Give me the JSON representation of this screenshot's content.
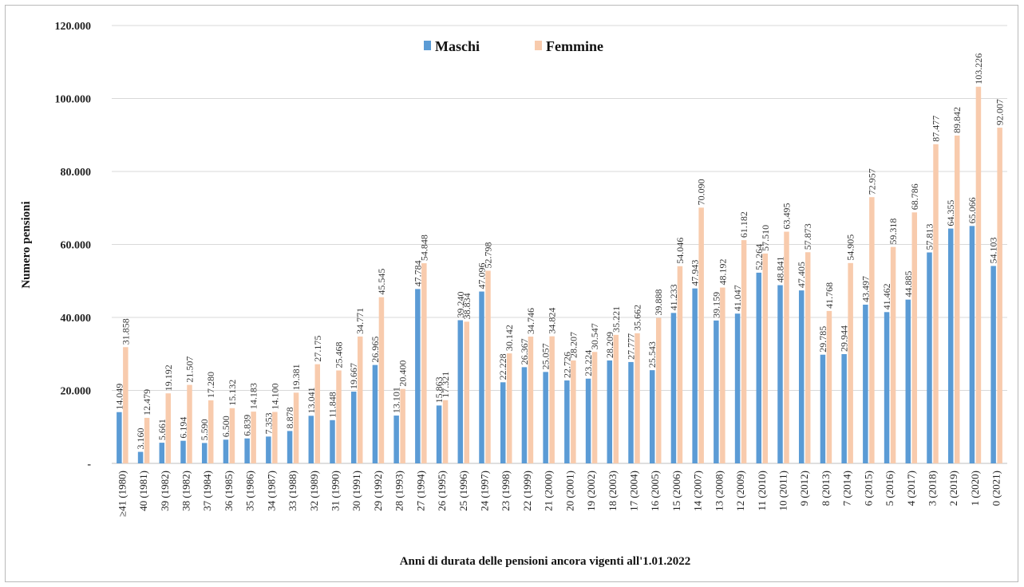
{
  "chart_data": {
    "type": "bar",
    "title": "",
    "xlabel": "Anni di durata delle pensioni ancora vigenti all'1.01.2022",
    "ylabel": "Numero pensioni",
    "ylim": [
      0,
      120000
    ],
    "yticks": [
      0,
      20000,
      40000,
      60000,
      80000,
      100000,
      120000
    ],
    "ytick_labels": [
      "-",
      "20.000",
      "40.000",
      "60.000",
      "80.000",
      "100.000",
      "120.000"
    ],
    "grid": "horizontal",
    "legend_position": "top-center",
    "categories": [
      "≥41 (1980)",
      "40 (1981)",
      "39 (1982)",
      "38 (1982)",
      "37 (1984)",
      "36 (1985)",
      "35 (1986)",
      "34 (1987)",
      "33 (1988)",
      "32 (1989)",
      "31 (1990)",
      "30 (1991)",
      "29 (1992)",
      "28 (1993)",
      "27 (1994)",
      "26 (1995)",
      "25 (1996)",
      "24 (1997)",
      "23 (1998)",
      "22 (1999)",
      "21 (2000)",
      "20 (2001)",
      "19 (2002)",
      "18 (2003)",
      "17 (2004)",
      "16 (2005)",
      "15 (2006)",
      "14 (2007)",
      "13 (2008)",
      "12 (2009)",
      "11 (2010)",
      "10 (2011)",
      "9 (2012)",
      "8 (2013)",
      "7 (2014)",
      "6 (2015)",
      "5 (2016)",
      "4 (2017)",
      "3 (2018)",
      "2 (2019)",
      "1 (2020)",
      "0 (2021)"
    ],
    "series": [
      {
        "name": "Maschi",
        "color": "#5b9bd5",
        "values": [
          14049,
          3160,
          5661,
          6194,
          5590,
          6500,
          6839,
          7353,
          8878,
          13041,
          11848,
          19667,
          26965,
          13101,
          47784,
          15863,
          39240,
          47096,
          22228,
          26367,
          25057,
          22726,
          23224,
          28209,
          27777,
          25543,
          41233,
          47943,
          39159,
          41047,
          52264,
          48841,
          47405,
          29785,
          29944,
          43497,
          41462,
          44885,
          57813,
          64355,
          65066,
          54103
        ],
        "labels": [
          "14.049",
          "3.160",
          "5.661",
          "6.194",
          "5.590",
          "6.500",
          "6.839",
          "7.353",
          "8.878",
          "13.041",
          "11.848",
          "19.667",
          "26.965",
          "13.101",
          "47.784",
          "15.863",
          "39.240",
          "47.096",
          "22.228",
          "26.367",
          "25.057",
          "22.726",
          "23.224",
          "28.209",
          "27.777",
          "25.543",
          "41.233",
          "47.943",
          "39.159",
          "41.047",
          "52.264",
          "48.841",
          "47.405",
          "29.785",
          "29.944",
          "43.497",
          "41.462",
          "44.885",
          "57.813",
          "64.355",
          "65.066",
          "54.103"
        ]
      },
      {
        "name": "Femmine",
        "color": "#f8cbad",
        "values": [
          31858,
          12479,
          19192,
          21507,
          17280,
          15132,
          14183,
          14100,
          19381,
          27175,
          25468,
          34771,
          45545,
          20400,
          54848,
          17321,
          38834,
          52798,
          30142,
          34746,
          34824,
          28207,
          30547,
          35221,
          35662,
          39888,
          54046,
          70090,
          48192,
          61182,
          57510,
          63495,
          57873,
          41768,
          54905,
          72957,
          59318,
          68786,
          87477,
          89842,
          103226,
          92007
        ],
        "labels": [
          "31.858",
          "12.479",
          "19.192",
          "21.507",
          "17.280",
          "15.132",
          "14.183",
          "14.100",
          "19.381",
          "27.175",
          "25.468",
          "34.771",
          "45.545",
          "20.400",
          "54.848",
          "17.321",
          "38.834",
          "52.798",
          "30.142",
          "34.746",
          "34.824",
          "28.207",
          "30.547",
          "35.221",
          "35.662",
          "39.888",
          "54.046",
          "70.090",
          "48.192",
          "61.182",
          "57.510",
          "63.495",
          "57.873",
          "41.768",
          "54.905",
          "72.957",
          "59.318",
          "68.786",
          "87.477",
          "89.842",
          "103.226",
          "92.007"
        ]
      }
    ]
  }
}
